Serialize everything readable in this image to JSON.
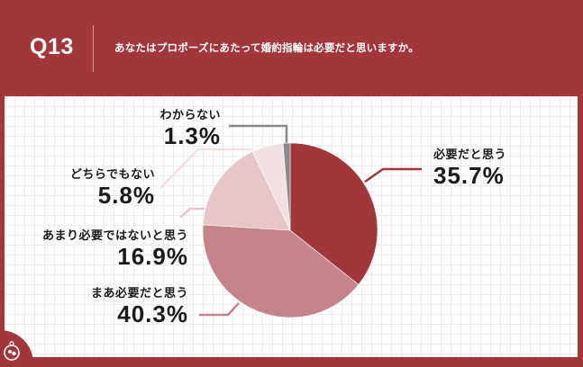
{
  "header": {
    "question_number": "Q13",
    "question_text": "あなたはプロポーズにあたって婚約指輪は必要だと思いますか。"
  },
  "colors": {
    "background": "#A3363A",
    "slice_necessary": "#A3363A",
    "slice_somewhat_necessary": "#C4848A",
    "slice_not_very_necessary": "#E8C6C8",
    "slice_neither": "#F3E1E2",
    "slice_unknown": "#8A8A8A"
  },
  "labels": {
    "necessary": {
      "category": "必要だと思う",
      "percent": "35.7%"
    },
    "somewhat_necessary": {
      "category": "まあ必要だと思う",
      "percent": "40.3%"
    },
    "not_very_necessary": {
      "category": "あまり必要ではないと思う",
      "percent": "16.9%"
    },
    "neither": {
      "category": "どちらでもない",
      "percent": "5.8%"
    },
    "unknown": {
      "category": "わからない",
      "percent": "1.3%"
    }
  },
  "chart_data": {
    "type": "pie",
    "title": "あなたはプロポーズにあたって婚約指輪は必要だと思いますか。",
    "question_id": "Q13",
    "categories": [
      "必要だと思う",
      "まあ必要だと思う",
      "あまり必要ではないと思う",
      "どちらでもない",
      "わからない"
    ],
    "values": [
      35.7,
      40.3,
      16.9,
      5.8,
      1.3
    ],
    "unit": "%",
    "start_angle": "12 o'clock, clockwise",
    "colors": [
      "#A3363A",
      "#C4848A",
      "#E8C6C8",
      "#F3E1E2",
      "#8A8A8A"
    ],
    "legend": "callout labels with leader lines"
  }
}
